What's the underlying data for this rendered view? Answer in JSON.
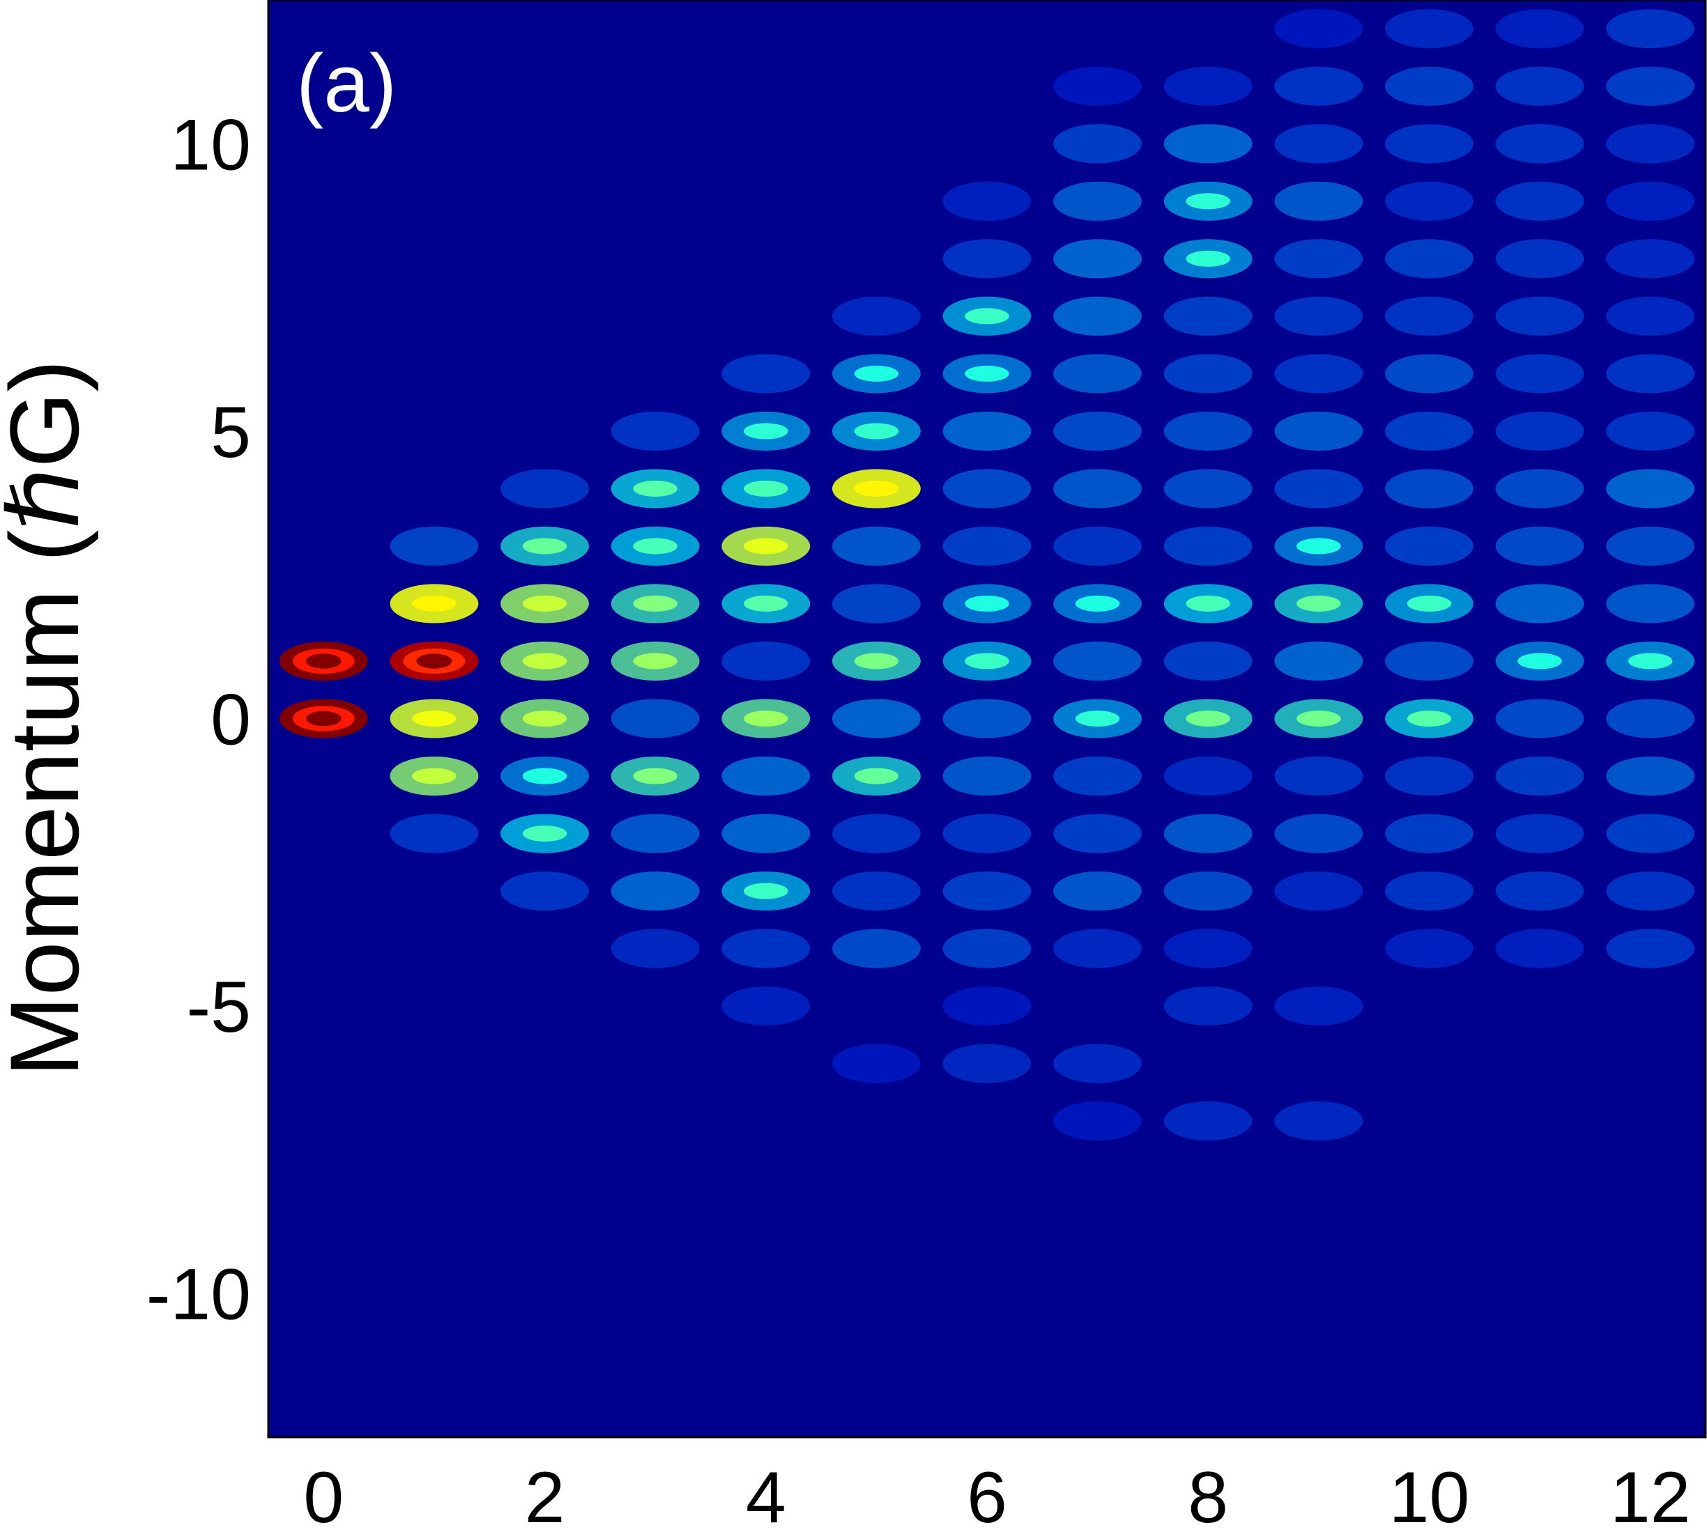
{
  "chart_data": {
    "type": "heatmap",
    "title": "",
    "panel_label": "(a)",
    "xlabel": "",
    "ylabel": "Momentum (ℏG)",
    "xlim": [
      -0.5,
      12.5
    ],
    "ylim": [
      -12.5,
      12.5
    ],
    "xticks": [
      0,
      2,
      4,
      6,
      8,
      10,
      12
    ],
    "yticks": [
      -10,
      -5,
      0,
      5,
      10
    ],
    "xtick_labels": [
      "0",
      "2",
      "4",
      "6",
      "8",
      "10",
      "12"
    ],
    "ytick_labels": [
      "-10",
      "-5",
      "0",
      "5",
      "10"
    ],
    "grid": false,
    "legend": "none",
    "colormap": "jet",
    "background_color": "#00008f",
    "intensity_range": [
      0,
      1
    ],
    "peaks": [
      {
        "x": 0,
        "y": 1,
        "v": 1.0
      },
      {
        "x": 0,
        "y": 0,
        "v": 1.0
      },
      {
        "x": 1,
        "y": 3,
        "v": 0.15
      },
      {
        "x": 1,
        "y": 2,
        "v": 0.55
      },
      {
        "x": 1,
        "y": 1,
        "v": 0.95
      },
      {
        "x": 1,
        "y": 0,
        "v": 0.52
      },
      {
        "x": 1,
        "y": -1,
        "v": 0.45
      },
      {
        "x": 1,
        "y": -2,
        "v": 0.12
      },
      {
        "x": 2,
        "y": 4,
        "v": 0.12
      },
      {
        "x": 2,
        "y": 3,
        "v": 0.32
      },
      {
        "x": 2,
        "y": 2,
        "v": 0.46
      },
      {
        "x": 2,
        "y": 1,
        "v": 0.45
      },
      {
        "x": 2,
        "y": 0,
        "v": 0.44
      },
      {
        "x": 2,
        "y": -1,
        "v": 0.22
      },
      {
        "x": 2,
        "y": -2,
        "v": 0.28
      },
      {
        "x": 2,
        "y": -3,
        "v": 0.12
      },
      {
        "x": 3,
        "y": 5,
        "v": 0.12
      },
      {
        "x": 3,
        "y": 4,
        "v": 0.3
      },
      {
        "x": 3,
        "y": 3,
        "v": 0.28
      },
      {
        "x": 3,
        "y": 2,
        "v": 0.36
      },
      {
        "x": 3,
        "y": 1,
        "v": 0.4
      },
      {
        "x": 3,
        "y": 0,
        "v": 0.17
      },
      {
        "x": 3,
        "y": -1,
        "v": 0.36
      },
      {
        "x": 3,
        "y": -2,
        "v": 0.18
      },
      {
        "x": 3,
        "y": -3,
        "v": 0.2
      },
      {
        "x": 3,
        "y": -4,
        "v": 0.1
      },
      {
        "x": 4,
        "y": 6,
        "v": 0.12
      },
      {
        "x": 4,
        "y": 5,
        "v": 0.24
      },
      {
        "x": 4,
        "y": 4,
        "v": 0.28
      },
      {
        "x": 4,
        "y": 3,
        "v": 0.5
      },
      {
        "x": 4,
        "y": 2,
        "v": 0.3
      },
      {
        "x": 4,
        "y": 1,
        "v": 0.12
      },
      {
        "x": 4,
        "y": 0,
        "v": 0.4
      },
      {
        "x": 4,
        "y": -1,
        "v": 0.2
      },
      {
        "x": 4,
        "y": -2,
        "v": 0.2
      },
      {
        "x": 4,
        "y": -3,
        "v": 0.26
      },
      {
        "x": 4,
        "y": -4,
        "v": 0.12
      },
      {
        "x": 4,
        "y": -5,
        "v": 0.08
      },
      {
        "x": 5,
        "y": 7,
        "v": 0.1
      },
      {
        "x": 5,
        "y": 6,
        "v": 0.22
      },
      {
        "x": 5,
        "y": 5,
        "v": 0.25
      },
      {
        "x": 5,
        "y": 4,
        "v": 0.55
      },
      {
        "x": 5,
        "y": 3,
        "v": 0.18
      },
      {
        "x": 5,
        "y": 2,
        "v": 0.15
      },
      {
        "x": 5,
        "y": 1,
        "v": 0.35
      },
      {
        "x": 5,
        "y": 0,
        "v": 0.2
      },
      {
        "x": 5,
        "y": -1,
        "v": 0.32
      },
      {
        "x": 5,
        "y": -2,
        "v": 0.12
      },
      {
        "x": 5,
        "y": -3,
        "v": 0.12
      },
      {
        "x": 5,
        "y": -4,
        "v": 0.16
      },
      {
        "x": 5,
        "y": -6,
        "v": 0.06
      },
      {
        "x": 6,
        "y": 9,
        "v": 0.08
      },
      {
        "x": 6,
        "y": 8,
        "v": 0.12
      },
      {
        "x": 6,
        "y": 7,
        "v": 0.26
      },
      {
        "x": 6,
        "y": 6,
        "v": 0.22
      },
      {
        "x": 6,
        "y": 5,
        "v": 0.2
      },
      {
        "x": 6,
        "y": 4,
        "v": 0.16
      },
      {
        "x": 6,
        "y": 3,
        "v": 0.14
      },
      {
        "x": 6,
        "y": 2,
        "v": 0.22
      },
      {
        "x": 6,
        "y": 1,
        "v": 0.26
      },
      {
        "x": 6,
        "y": 0,
        "v": 0.18
      },
      {
        "x": 6,
        "y": -1,
        "v": 0.18
      },
      {
        "x": 6,
        "y": -2,
        "v": 0.12
      },
      {
        "x": 6,
        "y": -3,
        "v": 0.14
      },
      {
        "x": 6,
        "y": -4,
        "v": 0.14
      },
      {
        "x": 6,
        "y": -5,
        "v": 0.06
      },
      {
        "x": 6,
        "y": -6,
        "v": 0.1
      },
      {
        "x": 7,
        "y": 11,
        "v": 0.06
      },
      {
        "x": 7,
        "y": 10,
        "v": 0.14
      },
      {
        "x": 7,
        "y": 9,
        "v": 0.18
      },
      {
        "x": 7,
        "y": 8,
        "v": 0.2
      },
      {
        "x": 7,
        "y": 7,
        "v": 0.2
      },
      {
        "x": 7,
        "y": 6,
        "v": 0.18
      },
      {
        "x": 7,
        "y": 5,
        "v": 0.16
      },
      {
        "x": 7,
        "y": 4,
        "v": 0.18
      },
      {
        "x": 7,
        "y": 3,
        "v": 0.12
      },
      {
        "x": 7,
        "y": 2,
        "v": 0.22
      },
      {
        "x": 7,
        "y": 1,
        "v": 0.18
      },
      {
        "x": 7,
        "y": 0,
        "v": 0.24
      },
      {
        "x": 7,
        "y": -1,
        "v": 0.14
      },
      {
        "x": 7,
        "y": -2,
        "v": 0.14
      },
      {
        "x": 7,
        "y": -3,
        "v": 0.18
      },
      {
        "x": 7,
        "y": -4,
        "v": 0.1
      },
      {
        "x": 7,
        "y": -6,
        "v": 0.1
      },
      {
        "x": 7,
        "y": -7,
        "v": 0.06
      },
      {
        "x": 8,
        "y": 11,
        "v": 0.08
      },
      {
        "x": 8,
        "y": 10,
        "v": 0.2
      },
      {
        "x": 8,
        "y": 9,
        "v": 0.24
      },
      {
        "x": 8,
        "y": 8,
        "v": 0.24
      },
      {
        "x": 8,
        "y": 7,
        "v": 0.14
      },
      {
        "x": 8,
        "y": 6,
        "v": 0.14
      },
      {
        "x": 8,
        "y": 5,
        "v": 0.16
      },
      {
        "x": 8,
        "y": 4,
        "v": 0.16
      },
      {
        "x": 8,
        "y": 3,
        "v": 0.14
      },
      {
        "x": 8,
        "y": 2,
        "v": 0.28
      },
      {
        "x": 8,
        "y": 1,
        "v": 0.14
      },
      {
        "x": 8,
        "y": 0,
        "v": 0.34
      },
      {
        "x": 8,
        "y": -1,
        "v": 0.1
      },
      {
        "x": 8,
        "y": -2,
        "v": 0.18
      },
      {
        "x": 8,
        "y": -3,
        "v": 0.16
      },
      {
        "x": 8,
        "y": -4,
        "v": 0.08
      },
      {
        "x": 8,
        "y": -5,
        "v": 0.1
      },
      {
        "x": 8,
        "y": -7,
        "v": 0.1
      },
      {
        "x": 9,
        "y": 12,
        "v": 0.06
      },
      {
        "x": 9,
        "y": 11,
        "v": 0.12
      },
      {
        "x": 9,
        "y": 10,
        "v": 0.12
      },
      {
        "x": 9,
        "y": 9,
        "v": 0.18
      },
      {
        "x": 9,
        "y": 8,
        "v": 0.14
      },
      {
        "x": 9,
        "y": 7,
        "v": 0.12
      },
      {
        "x": 9,
        "y": 6,
        "v": 0.12
      },
      {
        "x": 9,
        "y": 5,
        "v": 0.18
      },
      {
        "x": 9,
        "y": 4,
        "v": 0.14
      },
      {
        "x": 9,
        "y": 3,
        "v": 0.22
      },
      {
        "x": 9,
        "y": 2,
        "v": 0.32
      },
      {
        "x": 9,
        "y": 1,
        "v": 0.2
      },
      {
        "x": 9,
        "y": 0,
        "v": 0.34
      },
      {
        "x": 9,
        "y": -1,
        "v": 0.12
      },
      {
        "x": 9,
        "y": -2,
        "v": 0.16
      },
      {
        "x": 9,
        "y": -3,
        "v": 0.1
      },
      {
        "x": 9,
        "y": -5,
        "v": 0.08
      },
      {
        "x": 9,
        "y": -7,
        "v": 0.1
      },
      {
        "x": 10,
        "y": 12,
        "v": 0.1
      },
      {
        "x": 10,
        "y": 11,
        "v": 0.14
      },
      {
        "x": 10,
        "y": 10,
        "v": 0.12
      },
      {
        "x": 10,
        "y": 9,
        "v": 0.1
      },
      {
        "x": 10,
        "y": 8,
        "v": 0.14
      },
      {
        "x": 10,
        "y": 7,
        "v": 0.12
      },
      {
        "x": 10,
        "y": 6,
        "v": 0.16
      },
      {
        "x": 10,
        "y": 5,
        "v": 0.14
      },
      {
        "x": 10,
        "y": 4,
        "v": 0.16
      },
      {
        "x": 10,
        "y": 3,
        "v": 0.14
      },
      {
        "x": 10,
        "y": 2,
        "v": 0.26
      },
      {
        "x": 10,
        "y": 1,
        "v": 0.16
      },
      {
        "x": 10,
        "y": 0,
        "v": 0.3
      },
      {
        "x": 10,
        "y": -1,
        "v": 0.12
      },
      {
        "x": 10,
        "y": -2,
        "v": 0.14
      },
      {
        "x": 10,
        "y": -3,
        "v": 0.12
      },
      {
        "x": 10,
        "y": -4,
        "v": 0.08
      },
      {
        "x": 11,
        "y": 12,
        "v": 0.08
      },
      {
        "x": 11,
        "y": 11,
        "v": 0.12
      },
      {
        "x": 11,
        "y": 10,
        "v": 0.12
      },
      {
        "x": 11,
        "y": 9,
        "v": 0.12
      },
      {
        "x": 11,
        "y": 8,
        "v": 0.12
      },
      {
        "x": 11,
        "y": 7,
        "v": 0.12
      },
      {
        "x": 11,
        "y": 6,
        "v": 0.12
      },
      {
        "x": 11,
        "y": 5,
        "v": 0.12
      },
      {
        "x": 11,
        "y": 4,
        "v": 0.16
      },
      {
        "x": 11,
        "y": 3,
        "v": 0.16
      },
      {
        "x": 11,
        "y": 2,
        "v": 0.2
      },
      {
        "x": 11,
        "y": 1,
        "v": 0.22
      },
      {
        "x": 11,
        "y": 0,
        "v": 0.16
      },
      {
        "x": 11,
        "y": -1,
        "v": 0.14
      },
      {
        "x": 11,
        "y": -2,
        "v": 0.12
      },
      {
        "x": 11,
        "y": -3,
        "v": 0.12
      },
      {
        "x": 11,
        "y": -4,
        "v": 0.08
      },
      {
        "x": 12,
        "y": 12,
        "v": 0.12
      },
      {
        "x": 12,
        "y": 11,
        "v": 0.14
      },
      {
        "x": 12,
        "y": 10,
        "v": 0.1
      },
      {
        "x": 12,
        "y": 9,
        "v": 0.08
      },
      {
        "x": 12,
        "y": 8,
        "v": 0.1
      },
      {
        "x": 12,
        "y": 7,
        "v": 0.1
      },
      {
        "x": 12,
        "y": 6,
        "v": 0.12
      },
      {
        "x": 12,
        "y": 5,
        "v": 0.12
      },
      {
        "x": 12,
        "y": 4,
        "v": 0.2
      },
      {
        "x": 12,
        "y": 3,
        "v": 0.16
      },
      {
        "x": 12,
        "y": 2,
        "v": 0.18
      },
      {
        "x": 12,
        "y": 1,
        "v": 0.24
      },
      {
        "x": 12,
        "y": 0,
        "v": 0.16
      },
      {
        "x": 12,
        "y": -1,
        "v": 0.18
      },
      {
        "x": 12,
        "y": -2,
        "v": 0.14
      },
      {
        "x": 12,
        "y": -3,
        "v": 0.12
      },
      {
        "x": 12,
        "y": -4,
        "v": 0.12
      }
    ]
  }
}
